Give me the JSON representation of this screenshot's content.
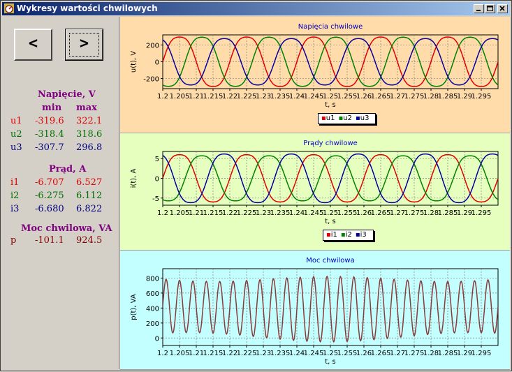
{
  "window": {
    "title": "Wykresy wartości chwilowych",
    "icon": "app-gauge-icon"
  },
  "nav": {
    "prev_label": "<",
    "next_label": ">"
  },
  "stats": {
    "voltage": {
      "title": "Napięcie, V",
      "col_min": "min",
      "col_max": "max",
      "rows": [
        {
          "name": "u1",
          "min": "-319.6",
          "max": "322.1",
          "color": "#e00000"
        },
        {
          "name": "u2",
          "min": "-318.4",
          "max": "318.6",
          "color": "#007000"
        },
        {
          "name": "u3",
          "min": "-307.7",
          "max": "296.8",
          "color": "#000080"
        }
      ]
    },
    "current": {
      "title": "Prąd, A",
      "rows": [
        {
          "name": "i1",
          "min": "-6.707",
          "max": "6.527",
          "color": "#e00000"
        },
        {
          "name": "i2",
          "min": "-6.275",
          "max": "6.112",
          "color": "#007000"
        },
        {
          "name": "i3",
          "min": "-6.680",
          "max": "6.822",
          "color": "#000080"
        }
      ]
    },
    "power": {
      "title": "Moc chwilowa, VA",
      "rows": [
        {
          "name": "p",
          "min": "-101.1",
          "max": "924.5",
          "color": "#800000"
        }
      ]
    }
  },
  "chart_data": [
    {
      "type": "line",
      "title": "Napięcia chwilowe",
      "xlabel": "t, s",
      "ylabel": "u(t), V",
      "xlim": [
        1.2,
        1.3
      ],
      "ylim": [
        -320,
        320
      ],
      "yticks": [
        200,
        0,
        -200
      ],
      "xtick_labels": [
        "1.2",
        "1.205",
        "1.21",
        "1.215",
        "1.22",
        "1.225",
        "1.23",
        "1.235",
        "1.24",
        "1.245",
        "1.25",
        "1.255",
        "1.26",
        "1.265",
        "1.27",
        "1.275",
        "1.28",
        "1.285",
        "1.29",
        "1.295"
      ],
      "background": "#ffdcaa",
      "legend_position": "bottom-center",
      "series": [
        {
          "name": "u1",
          "color": "#e00000",
          "amplitude": 320,
          "frequency_hz": 50,
          "phase_deg": 0
        },
        {
          "name": "u2",
          "color": "#008000",
          "amplitude": 318,
          "frequency_hz": 50,
          "phase_deg": -120
        },
        {
          "name": "u3",
          "color": "#0000a0",
          "amplitude": 300,
          "frequency_hz": 50,
          "phase_deg": 120
        }
      ]
    },
    {
      "type": "line",
      "title": "Prądy chwilowe",
      "xlabel": "t, s",
      "ylabel": "i(t), A",
      "xlim": [
        1.2,
        1.3
      ],
      "ylim": [
        -6.8,
        6.8
      ],
      "yticks": [
        5,
        0,
        -5
      ],
      "xtick_labels": [
        "1.2",
        "1.205",
        "1.21",
        "1.215",
        "1.22",
        "1.225",
        "1.23",
        "1.235",
        "1.24",
        "1.245",
        "1.25",
        "1.255",
        "1.26",
        "1.265",
        "1.27",
        "1.275",
        "1.28",
        "1.285",
        "1.29",
        "1.295"
      ],
      "background": "#e6ffbe",
      "legend_position": "bottom-center",
      "series": [
        {
          "name": "i1",
          "color": "#e00000",
          "amplitude": 6.5,
          "frequency_hz": 50,
          "phase_deg": 0
        },
        {
          "name": "i2",
          "color": "#008000",
          "amplitude": 6.2,
          "frequency_hz": 50,
          "phase_deg": -120
        },
        {
          "name": "i3",
          "color": "#0000a0",
          "amplitude": 6.7,
          "frequency_hz": 50,
          "phase_deg": 120
        }
      ]
    },
    {
      "type": "line",
      "title": "Moc chwilowa",
      "xlabel": "t, s",
      "ylabel": "p(t), VA",
      "xlim": [
        1.2,
        1.3
      ],
      "ylim": [
        -100,
        925
      ],
      "yticks": [
        800,
        600,
        400,
        200,
        0
      ],
      "xtick_labels": [
        "1.2",
        "1.205",
        "1.21",
        "1.215",
        "1.22",
        "1.225",
        "1.23",
        "1.235",
        "1.24",
        "1.245",
        "1.25",
        "1.255",
        "1.26",
        "1.265",
        "1.27",
        "1.275",
        "1.28",
        "1.285",
        "1.29",
        "1.295"
      ],
      "background": "#c3ffff",
      "series": [
        {
          "name": "p",
          "color": "#8b3a3a",
          "offset": 410,
          "amplitude": 390,
          "frequency_hz": 250,
          "min": -101.1,
          "max": 924.5
        }
      ]
    }
  ]
}
